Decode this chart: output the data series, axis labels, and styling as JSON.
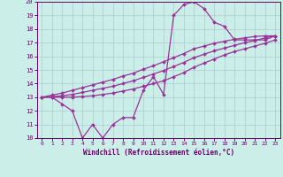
{
  "xlabel": "Windchill (Refroidissement éolien,°C)",
  "x_values": [
    0,
    1,
    2,
    3,
    4,
    5,
    6,
    7,
    8,
    9,
    10,
    11,
    12,
    13,
    14,
    15,
    16,
    17,
    18,
    19,
    20,
    21,
    22,
    23
  ],
  "main_line": [
    13.0,
    13.0,
    12.5,
    12.0,
    10.0,
    11.0,
    10.0,
    11.0,
    11.5,
    11.5,
    13.5,
    14.5,
    13.2,
    19.0,
    19.8,
    20.0,
    19.5,
    18.5,
    18.2,
    17.2,
    17.2,
    17.2,
    17.2,
    17.5
  ],
  "line_low": [
    13.0,
    13.0,
    13.0,
    13.0,
    13.05,
    13.1,
    13.2,
    13.3,
    13.45,
    13.6,
    13.8,
    14.0,
    14.2,
    14.5,
    14.8,
    15.2,
    15.5,
    15.8,
    16.1,
    16.35,
    16.55,
    16.75,
    16.95,
    17.2
  ],
  "line_mid": [
    13.0,
    13.05,
    13.1,
    13.2,
    13.35,
    13.5,
    13.65,
    13.8,
    14.0,
    14.2,
    14.45,
    14.7,
    14.95,
    15.25,
    15.55,
    15.9,
    16.15,
    16.4,
    16.6,
    16.8,
    17.0,
    17.15,
    17.35,
    17.5
  ],
  "line_high": [
    13.0,
    13.15,
    13.3,
    13.5,
    13.7,
    13.9,
    14.1,
    14.3,
    14.55,
    14.75,
    15.05,
    15.3,
    15.6,
    15.9,
    16.2,
    16.55,
    16.75,
    16.95,
    17.1,
    17.25,
    17.35,
    17.45,
    17.5,
    17.5
  ],
  "ylim": [
    10,
    20
  ],
  "xlim": [
    -0.5,
    23.5
  ],
  "yticks": [
    10,
    11,
    12,
    13,
    14,
    15,
    16,
    17,
    18,
    19,
    20
  ],
  "xticks": [
    0,
    1,
    2,
    3,
    4,
    5,
    6,
    7,
    8,
    9,
    10,
    11,
    12,
    13,
    14,
    15,
    16,
    17,
    18,
    19,
    20,
    21,
    22,
    23
  ],
  "line_color": "#993399",
  "bg_color": "#cceee8",
  "grid_color": "#aacccc",
  "text_color": "#660066",
  "markersize": 2.0,
  "linewidth": 0.9
}
